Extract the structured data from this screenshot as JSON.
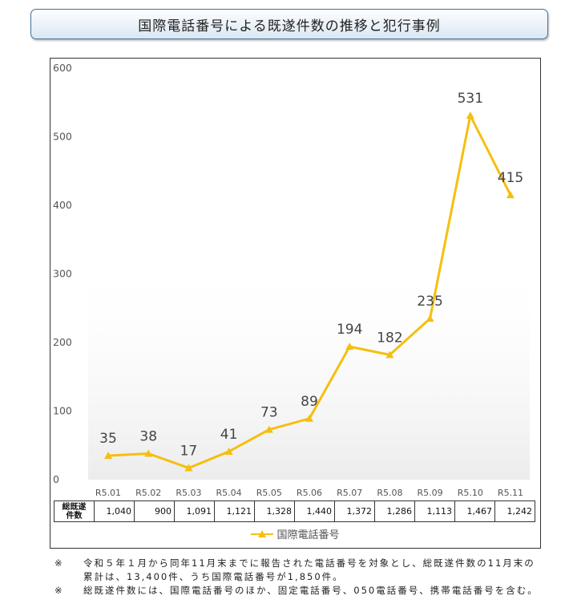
{
  "title": "国際電話番号による既遂件数の推移と犯行事例",
  "chart_data": {
    "type": "line",
    "categories": [
      "R5.01",
      "R5.02",
      "R5.03",
      "R5.04",
      "R5.05",
      "R5.06",
      "R5.07",
      "R5.08",
      "R5.09",
      "R5.10",
      "R5.11"
    ],
    "series": [
      {
        "name": "国際電話番号",
        "values": [
          35,
          38,
          17,
          41,
          73,
          89,
          194,
          182,
          235,
          531,
          415
        ],
        "color": "#f5bf0f"
      }
    ],
    "y_ticks": [
      "0",
      "100",
      "200",
      "300",
      "400",
      "500",
      "600"
    ],
    "ylim": [
      0,
      600
    ],
    "grid": false,
    "legend": "bottom",
    "table": {
      "row_label": "総既遂件数",
      "values": [
        "1,040",
        "900",
        "1,091",
        "1,121",
        "1,328",
        "1,440",
        "1,372",
        "1,286",
        "1,113",
        "1,467",
        "1,242"
      ]
    }
  },
  "notes": [
    {
      "mark": "※",
      "text": "令和５年１月から同年11月末までに報告された電話番号を対象とし、総既遂件数の11月末の累計は、13,400件、うち国際電話番号が1,850件。"
    },
    {
      "mark": "※",
      "text": "総既遂件数には、国際電話番号のほか、固定電話番号、050電話番号、携帯電話番号を含む。"
    }
  ]
}
